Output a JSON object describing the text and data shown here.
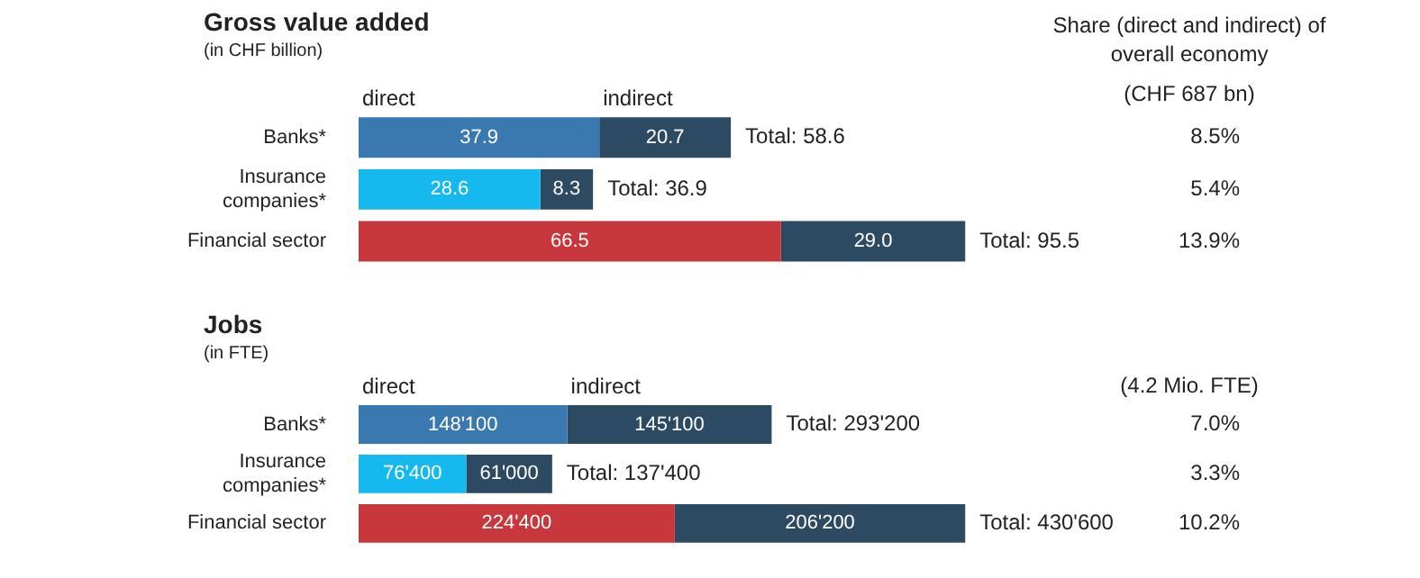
{
  "chart_data": [
    {
      "type": "bar",
      "orientation": "horizontal",
      "stacked": true,
      "title": "Gross value added",
      "subtitle": "(in CHF billion)",
      "categories": [
        "Banks*",
        "Insurance companies*",
        "Financial sector"
      ],
      "series": [
        {
          "name": "direct",
          "colors": [
            "#3a78b0",
            "#16b9ef",
            "#c8373b"
          ],
          "values": [
            37.9,
            28.6,
            66.5
          ],
          "value_labels": [
            "37.9",
            "28.6",
            "66.5"
          ]
        },
        {
          "name": "indirect",
          "colors": [
            "#2d4a63",
            "#2d4a63",
            "#2d4a63"
          ],
          "values": [
            20.7,
            8.3,
            29.0
          ],
          "value_labels": [
            "20.7",
            "8.3",
            "29.0"
          ]
        }
      ],
      "totals": [
        "Total: 58.6",
        "Total: 36.9",
        "Total: 95.5"
      ],
      "annotations": [
        "Share (direct and indirect) of overall economy",
        "(CHF 687 bn)",
        "8.5%",
        "5.4%",
        "13.9%"
      ]
    },
    {
      "type": "bar",
      "orientation": "horizontal",
      "stacked": true,
      "title": "Jobs",
      "subtitle": "(in FTE)",
      "categories": [
        "Banks*",
        "Insurance companies*",
        "Financial sector"
      ],
      "series": [
        {
          "name": "direct",
          "colors": [
            "#3a78b0",
            "#16b9ef",
            "#c8373b"
          ],
          "values": [
            148100,
            76400,
            224400
          ],
          "value_labels": [
            "148'100",
            "76'400",
            "224'400"
          ]
        },
        {
          "name": "indirect",
          "colors": [
            "#2d4a63",
            "#2d4a63",
            "#2d4a63"
          ],
          "values": [
            145100,
            61000,
            206200
          ],
          "value_labels": [
            "145'100",
            "61'000",
            "206'200"
          ]
        }
      ],
      "totals": [
        "Total: 293'200",
        "Total: 137'400",
        "Total: 430'600"
      ],
      "annotations": [
        "(4.2 Mio. FTE)",
        "7.0%",
        "3.3%",
        "10.2%"
      ]
    }
  ]
}
